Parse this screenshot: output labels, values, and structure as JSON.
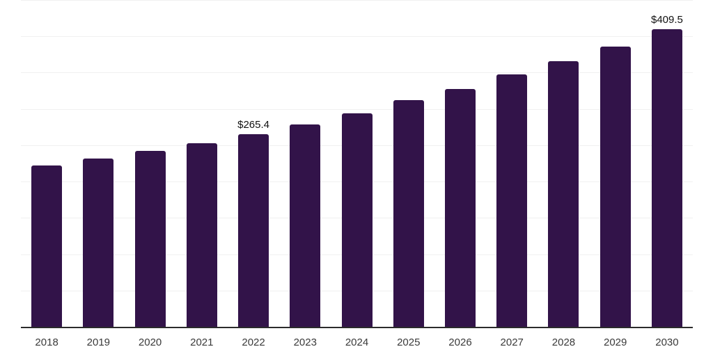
{
  "chart_data": {
    "type": "bar",
    "title": "",
    "xlabel": "",
    "ylabel": "",
    "categories": [
      "2018",
      "2019",
      "2020",
      "2021",
      "2022",
      "2023",
      "2024",
      "2025",
      "2026",
      "2027",
      "2028",
      "2029",
      "2030"
    ],
    "values": [
      222.4,
      231.7,
      242.5,
      252.7,
      265.4,
      278.3,
      293.9,
      311.8,
      327.4,
      347.8,
      365.4,
      386.1,
      409.5
    ],
    "data_labels": {
      "2022": "$265.4",
      "2030": "$409.5"
    },
    "ylim": [
      0,
      450
    ],
    "grid_step": 50,
    "grid": "horizontal",
    "legend": "none",
    "colors": {
      "bar": "#321349",
      "gridline": "#f0f0f0",
      "axis": "#2b2b2b",
      "tick_label": "#3a3a3a",
      "value_label": "#111111",
      "background": "#ffffff"
    }
  }
}
